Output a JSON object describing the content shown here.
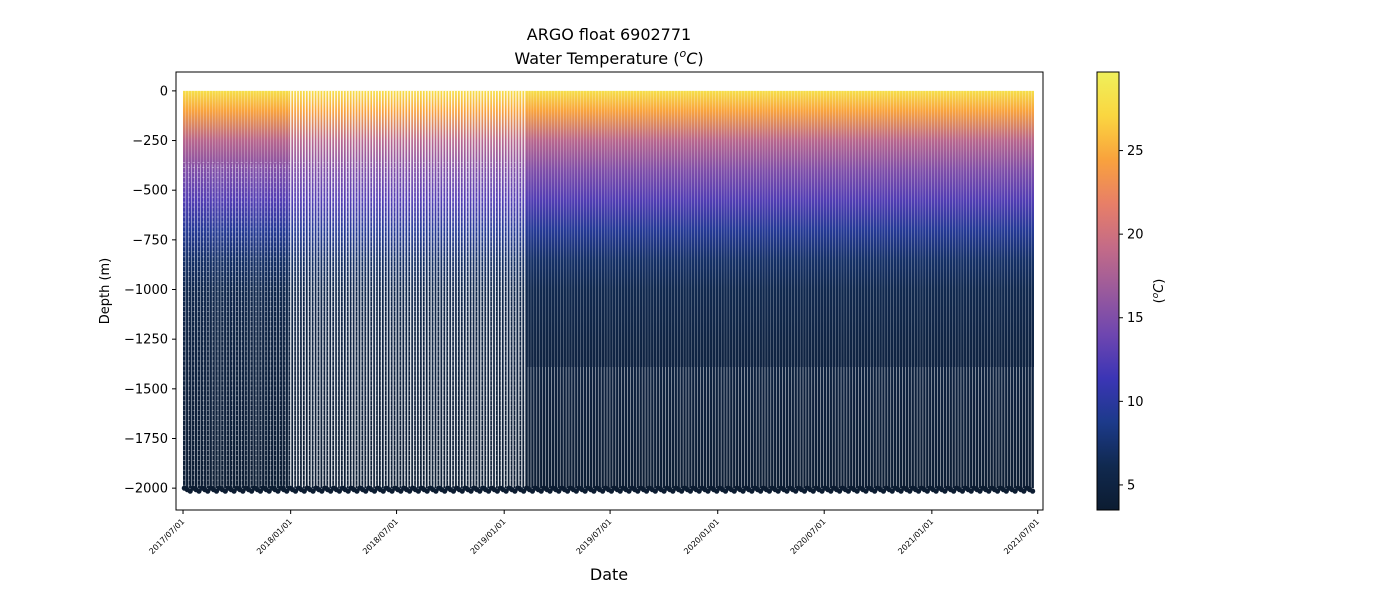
{
  "chart_data": {
    "type": "heatmap",
    "title": "ARGO float 6902771",
    "subtitle_prefix": "Water Temperature (",
    "subtitle_unit_sup": "o",
    "subtitle_unit": "C",
    "subtitle_suffix": ")",
    "xlabel": "Date",
    "ylabel": "Depth (m)",
    "x_ticks": [
      "2017/07/01",
      "2018/01/01",
      "2018/07/01",
      "2019/01/01",
      "2019/07/01",
      "2020/01/01",
      "2020/07/01",
      "2021/01/01",
      "2021/07/01"
    ],
    "y_ticks": [
      0,
      -250,
      -500,
      -750,
      -1000,
      -1250,
      -1500,
      -1750,
      -2000
    ],
    "xlim": [
      "2017/06/19",
      "2021/07/10"
    ],
    "ylim": [
      -2110,
      95
    ],
    "colorbar": {
      "label_prefix": "(",
      "label_sup": "o",
      "label_unit": "C",
      "label_suffix": ")",
      "ticks": [
        5,
        10,
        15,
        20,
        25
      ],
      "range": [
        3.5,
        29.7
      ],
      "colormap": [
        "#0c1c31",
        "#10294f",
        "#1c3a8a",
        "#3b35b5",
        "#6e46b0",
        "#9a5a9c",
        "#c46b87",
        "#e87f67",
        "#f9a23d",
        "#fad640",
        "#eff05b"
      ]
    },
    "profiles": {
      "first_date": "2017/07/01",
      "last_date": "2021/06/23",
      "period_days": 5,
      "max_depth": -2000,
      "phase_boundaries": [
        "2017/12/25",
        "2019/02/05"
      ],
      "phase1_profiles_shallow_to": -370,
      "phase2_profiles_shallow_to": -360,
      "phase3_profiles_shallow_to": -1390
    },
    "temperature_profile": [
      {
        "depth": 0,
        "temp": 28.0
      },
      {
        "depth": -100,
        "temp": 24.5
      },
      {
        "depth": -250,
        "temp": 18.5
      },
      {
        "depth": -400,
        "temp": 15.0
      },
      {
        "depth": -550,
        "temp": 12.5
      },
      {
        "depth": -700,
        "temp": 9.5
      },
      {
        "depth": -850,
        "temp": 7.2
      },
      {
        "depth": -1000,
        "temp": 6.0
      },
      {
        "depth": -1250,
        "temp": 5.2
      },
      {
        "depth": -1500,
        "temp": 4.6
      },
      {
        "depth": -2000,
        "temp": 3.8
      }
    ]
  }
}
